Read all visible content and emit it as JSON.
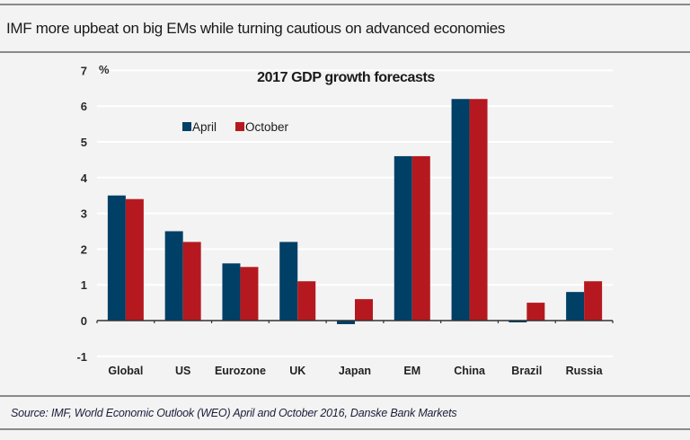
{
  "header": {
    "title": "IMF more upbeat on big EMs while turning cautious on advanced economies"
  },
  "footer": {
    "source": "Source: IMF, World Economic Outlook (WEO) April and October 2016, Danske Bank Markets"
  },
  "colors": {
    "april": "#003f66",
    "october": "#b5191f",
    "background": "#f3f3f3",
    "gridline": "#ffffff",
    "axis": "#333333"
  },
  "chart_data": {
    "type": "bar",
    "title": "2017 GDP growth forecasts",
    "ylabel": "%",
    "xlabel": "",
    "ylim": [
      -1,
      7
    ],
    "yticks": [
      -1,
      0,
      1,
      2,
      3,
      4,
      5,
      6,
      7
    ],
    "grid": true,
    "legend": "top-left",
    "categories": [
      "Global",
      "US",
      "Eurozone",
      "UK",
      "Japan",
      "EM",
      "China",
      "Brazil",
      "Russia"
    ],
    "series": [
      {
        "name": "April",
        "values": [
          3.5,
          2.5,
          1.6,
          2.2,
          -0.1,
          4.6,
          6.2,
          -0.05,
          0.8
        ]
      },
      {
        "name": "October",
        "values": [
          3.4,
          2.2,
          1.5,
          1.1,
          0.6,
          4.6,
          6.2,
          0.5,
          1.1
        ]
      }
    ]
  }
}
